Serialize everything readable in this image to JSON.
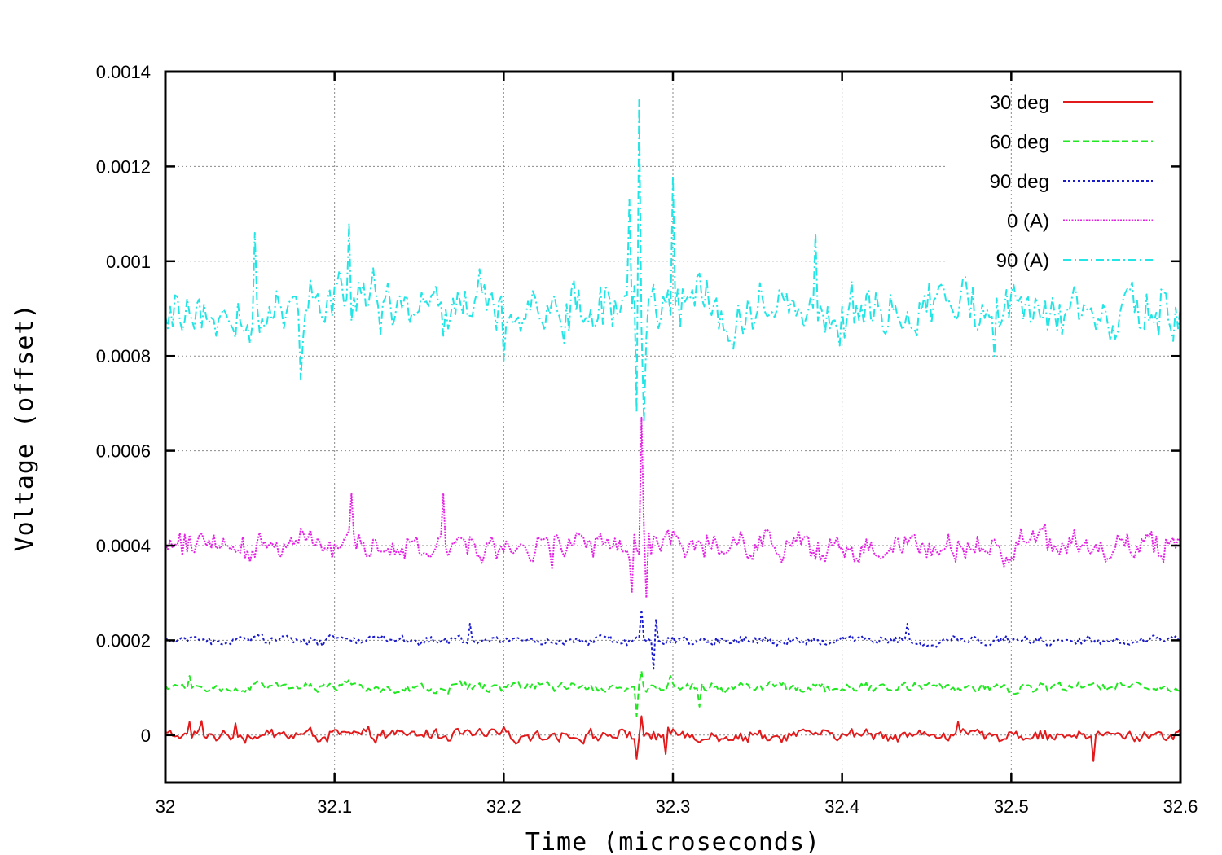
{
  "chart_data": {
    "type": "line",
    "xlabel": "Time (microseconds)",
    "ylabel": "Voltage (offset)",
    "xlim": [
      32,
      32.6
    ],
    "ylim": [
      -0.0001,
      0.0014
    ],
    "x_ticks": [
      32,
      32.1,
      32.2,
      32.3,
      32.4,
      32.5,
      32.6
    ],
    "x_tick_labels": [
      "32",
      "32.1",
      "32.2",
      "32.3",
      "32.4",
      "32.5",
      "32.6"
    ],
    "y_ticks": [
      0,
      0.0002,
      0.0004,
      0.0006,
      0.0008,
      0.001,
      0.0012,
      0.0014
    ],
    "y_tick_labels": [
      "0",
      "0.0002",
      "0.0004",
      "0.0006",
      "0.0008",
      "0.001",
      "0.0012",
      "0.0014"
    ],
    "grid": true,
    "legend_position": "top-right",
    "series": [
      {
        "name": "30 deg",
        "color": "#e31a1c",
        "dash": "solid",
        "offset": 0,
        "noise_amplitude": 1.8e-05,
        "spikes": [
          {
            "x": 32.014,
            "y": 2.8e-05
          },
          {
            "x": 32.022,
            "y": 3e-05
          },
          {
            "x": 32.042,
            "y": 2.5e-05
          },
          {
            "x": 32.282,
            "y": 4e-05
          },
          {
            "x": 32.279,
            "y": -5e-05
          },
          {
            "x": 32.296,
            "y": -4e-05
          },
          {
            "x": 32.468,
            "y": 2.8e-05
          },
          {
            "x": 32.549,
            "y": -5.5e-05
          }
        ]
      },
      {
        "name": "60 deg",
        "color": "#22e822",
        "dash": "dashed",
        "offset": 0.0001,
        "noise_amplitude": 1.5e-05,
        "spikes": [
          {
            "x": 32.282,
            "y": 0.000135
          },
          {
            "x": 32.278,
            "y": 4e-05
          },
          {
            "x": 32.014,
            "y": 0.000125
          },
          {
            "x": 32.298,
            "y": 0.000125
          },
          {
            "x": 32.316,
            "y": 6e-05
          }
        ]
      },
      {
        "name": "90 deg",
        "color": "#1a1acd",
        "dash": "dotted",
        "offset": 0.0002,
        "noise_amplitude": 1.5e-05,
        "spikes": [
          {
            "x": 32.282,
            "y": 0.000265
          },
          {
            "x": 32.288,
            "y": 0.00014
          },
          {
            "x": 32.18,
            "y": 0.000235
          },
          {
            "x": 32.438,
            "y": 0.000235
          },
          {
            "x": 32.29,
            "y": 0.000245
          }
        ]
      },
      {
        "name": "0 (A)",
        "color": "#e520e5",
        "dash": "dotted-fine",
        "offset": 0.0004,
        "noise_amplitude": 4.5e-05,
        "spikes": [
          {
            "x": 32.281,
            "y": 0.00067
          },
          {
            "x": 32.284,
            "y": 0.00029
          },
          {
            "x": 32.276,
            "y": 0.0003
          },
          {
            "x": 32.11,
            "y": 0.00051
          },
          {
            "x": 32.165,
            "y": 0.00051
          },
          {
            "x": 32.228,
            "y": 0.00035
          }
        ]
      },
      {
        "name": "90 (A)",
        "color": "#22e5e5",
        "dash": "dash-dot",
        "offset": 0.0009,
        "noise_amplitude": 8.5e-05,
        "spikes": [
          {
            "x": 32.28,
            "y": 0.00134
          },
          {
            "x": 32.283,
            "y": 0.00066
          },
          {
            "x": 32.279,
            "y": 0.00068
          },
          {
            "x": 32.3,
            "y": 0.00118
          },
          {
            "x": 32.274,
            "y": 0.00113
          },
          {
            "x": 32.08,
            "y": 0.00075
          },
          {
            "x": 32.053,
            "y": 0.00106
          },
          {
            "x": 32.108,
            "y": 0.00108
          },
          {
            "x": 32.385,
            "y": 0.00106
          },
          {
            "x": 32.49,
            "y": 0.0008
          },
          {
            "x": 32.2,
            "y": 0.00079
          }
        ]
      }
    ]
  }
}
